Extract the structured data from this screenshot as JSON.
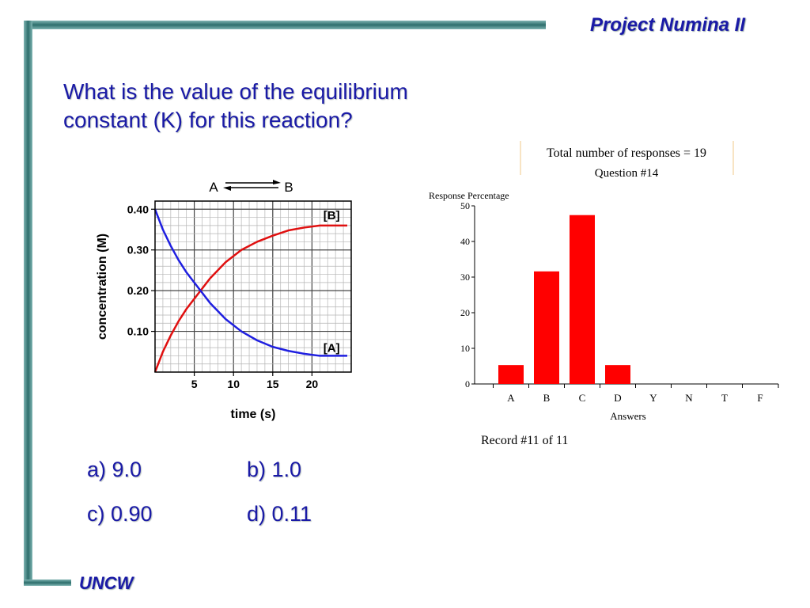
{
  "header": {
    "brand": "Project Numina II"
  },
  "footer": {
    "org": "UNCW"
  },
  "question": {
    "line1": "What is the value of the equilibrium",
    "line2": "constant (K) for this reaction?"
  },
  "answers": [
    {
      "label": "a)  9.0"
    },
    {
      "label": "b)  1.0"
    },
    {
      "label": "c)  0.90"
    },
    {
      "label": "d)  0.11"
    }
  ],
  "colors": {
    "title": "#1a1aa6",
    "accent_bar": "#2d6e6c",
    "curve_A": "#1f1fe0",
    "curve_B": "#e01010",
    "bars": "#ff0000"
  },
  "chart_data": [
    {
      "type": "line",
      "reaction": {
        "left": "A",
        "right": "B"
      },
      "xlabel": "time (s)",
      "ylabel": "concentration (M)",
      "xlim": [
        0,
        25
      ],
      "ylim": [
        0,
        0.42
      ],
      "xticks": [
        "5",
        "10",
        "15",
        "20"
      ],
      "yticks": [
        "0.40",
        "0.30",
        "0.20",
        "0.10"
      ],
      "grid": true,
      "series": [
        {
          "name": "[B]",
          "x": [
            0,
            1,
            2,
            3,
            4,
            5,
            7,
            9,
            11,
            13,
            15,
            17,
            19,
            21,
            23,
            24.5
          ],
          "y": [
            0.0,
            0.05,
            0.09,
            0.125,
            0.155,
            0.18,
            0.23,
            0.27,
            0.3,
            0.32,
            0.335,
            0.348,
            0.355,
            0.36,
            0.36,
            0.36
          ]
        },
        {
          "name": "[A]",
          "x": [
            0,
            1,
            2,
            3,
            4,
            5,
            7,
            9,
            11,
            13,
            15,
            17,
            19,
            21,
            23,
            24.5
          ],
          "y": [
            0.4,
            0.35,
            0.31,
            0.275,
            0.245,
            0.22,
            0.17,
            0.13,
            0.1,
            0.078,
            0.062,
            0.052,
            0.045,
            0.04,
            0.04,
            0.04
          ]
        }
      ]
    },
    {
      "type": "bar",
      "title": "Total number of responses = 19",
      "subtitle": "Question #14",
      "ylabel": "Response Percentage",
      "xlabel": "Answers",
      "categories": [
        "A",
        "B",
        "C",
        "D",
        "Y",
        "N",
        "T",
        "F"
      ],
      "values": [
        5.3,
        31.6,
        47.4,
        5.3,
        0,
        0,
        0,
        0
      ],
      "ylim": [
        0,
        50
      ],
      "yticks": [
        "50",
        "40",
        "30",
        "20",
        "10",
        "0"
      ],
      "record": "Record #11 of 11"
    }
  ]
}
